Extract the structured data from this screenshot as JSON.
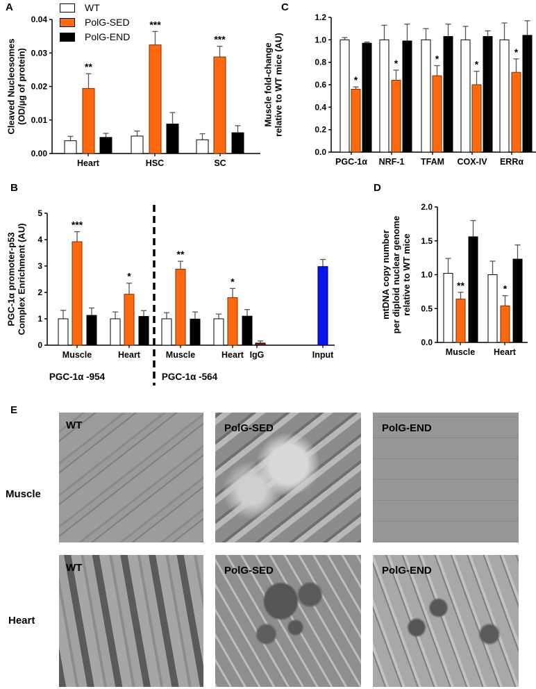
{
  "colors": {
    "wt": "#ffffff",
    "sed": "#ff6a10",
    "end": "#000000",
    "input": "#0a14e8",
    "igg": "#8b1a1a"
  },
  "legend": {
    "items": [
      {
        "label": "WT"
      },
      {
        "label": "PolG-SED"
      },
      {
        "label": "PolG-END"
      }
    ]
  },
  "panels": {
    "A": {
      "letter": "A"
    },
    "B": {
      "letter": "B"
    },
    "C": {
      "letter": "C"
    },
    "D": {
      "letter": "D"
    },
    "E": {
      "letter": "E",
      "rows": [
        {
          "label": "Muscle"
        },
        {
          "label": "Heart"
        }
      ],
      "images": [
        {
          "label": "WT"
        },
        {
          "label": "PolG-SED"
        },
        {
          "label": "PolG-END"
        },
        {
          "label": "WT"
        },
        {
          "label": "PolG-SED"
        },
        {
          "label": "PolG-END"
        }
      ]
    }
  },
  "chart_data": [
    {
      "panel": "A",
      "type": "bar",
      "title": "",
      "ylabel": "Cleaved Nucleosomes (OD/µg of protein)",
      "ylabel_lines": [
        "Cleaved Nucleosomes",
        "(OD/µg of protein)"
      ],
      "xlabel": "",
      "ylim": [
        0,
        0.04
      ],
      "yticks": [
        "0.00",
        "0.01",
        "0.02",
        "0.03",
        "0.04"
      ],
      "categories": [
        "Heart",
        "HSC",
        "SC"
      ],
      "series": [
        {
          "name": "WT",
          "values": [
            0.0038,
            0.0052,
            0.0041
          ],
          "errors": [
            0.0013,
            0.0015,
            0.0018
          ]
        },
        {
          "name": "PolG-SED",
          "values": [
            0.0194,
            0.0324,
            0.0288
          ],
          "errors": [
            0.0044,
            0.004,
            0.0032
          ]
        },
        {
          "name": "PolG-END",
          "values": [
            0.0048,
            0.0088,
            0.0062
          ],
          "errors": [
            0.0012,
            0.0034,
            0.0021
          ]
        }
      ],
      "annotations": [
        "**",
        "***",
        "***"
      ],
      "legend_position": "top"
    },
    {
      "panel": "B",
      "type": "bar",
      "title": "",
      "ylabel": "PGC-1α promoter-p53 Complex Enrichment (AU)",
      "ylabel_lines": [
        "PGC-1α promoter-p53",
        "Complex Enrichment (AU)"
      ],
      "ylim": [
        0,
        5
      ],
      "yticks": [
        "0",
        "1",
        "2",
        "3",
        "4",
        "5"
      ],
      "groups": [
        {
          "label": "PGC-1α -954",
          "categories": [
            "Muscle",
            "Heart"
          ]
        },
        {
          "label": "PGC-1α -564",
          "categories": [
            "Muscle",
            "Heart"
          ]
        }
      ],
      "categories": [
        "Muscle",
        "Heart",
        "Muscle",
        "Heart",
        "IgG",
        "Input"
      ],
      "series": [
        {
          "name": "WT",
          "values": [
            1.0,
            1.0,
            1.0,
            1.0,
            null,
            null
          ],
          "errors": [
            0.32,
            0.26,
            0.23,
            0.18,
            null,
            null
          ]
        },
        {
          "name": "PolG-SED",
          "values": [
            3.92,
            1.93,
            2.88,
            1.8,
            null,
            null
          ],
          "errors": [
            0.38,
            0.42,
            0.3,
            0.35,
            null,
            null
          ]
        },
        {
          "name": "PolG-END",
          "values": [
            1.13,
            1.09,
            0.99,
            1.1,
            null,
            null
          ],
          "errors": [
            0.28,
            0.22,
            0.27,
            0.25,
            null,
            null
          ]
        },
        {
          "name": "IgG",
          "values": [
            null,
            null,
            null,
            null,
            0.08,
            null
          ],
          "errors": [
            null,
            null,
            null,
            null,
            0.08,
            null
          ]
        },
        {
          "name": "Input",
          "values": [
            null,
            null,
            null,
            null,
            null,
            2.98
          ],
          "errors": [
            null,
            null,
            null,
            null,
            null,
            0.27
          ]
        }
      ],
      "annotations": [
        "***",
        "*",
        "**",
        "*"
      ],
      "divider": "dashed vertical line between PGC-1α -954 and PGC-1α -564"
    },
    {
      "panel": "C",
      "type": "bar",
      "title": "",
      "ylabel": "Muscle fold-change relative to WT mice (AU)",
      "ylabel_lines": [
        "Muscle fold-change",
        "relative to WT mice (AU)"
      ],
      "ylim": [
        0,
        1.2
      ],
      "yticks": [
        "0.0",
        "0.2",
        "0.4",
        "0.6",
        "0.8",
        "1.0",
        "1.2"
      ],
      "categories": [
        "PGC-1α",
        "NRF-1",
        "TFAM",
        "COX-IV",
        "ERRα"
      ],
      "series": [
        {
          "name": "WT",
          "values": [
            1.0,
            1.0,
            1.0,
            1.0,
            1.0
          ],
          "errors": [
            0.02,
            0.13,
            0.1,
            0.12,
            0.15
          ]
        },
        {
          "name": "PolG-SED",
          "values": [
            0.56,
            0.64,
            0.68,
            0.6,
            0.71
          ],
          "errors": [
            0.02,
            0.09,
            0.09,
            0.12,
            0.12
          ]
        },
        {
          "name": "PolG-END",
          "values": [
            0.97,
            0.99,
            1.03,
            1.03,
            1.04
          ],
          "errors": [
            0.01,
            0.15,
            0.11,
            0.05,
            0.13
          ]
        }
      ],
      "annotations": [
        "*",
        "*",
        "*",
        "*",
        "*"
      ]
    },
    {
      "panel": "D",
      "type": "bar",
      "title": "",
      "ylabel": "mtDNA copy number per diploid nuclear genome relative to WT mice",
      "ylabel_lines": [
        "mtDNA copy number",
        "per diploid nuclear genome",
        "relative to WT mice"
      ],
      "ylim": [
        0,
        2.0
      ],
      "yticks": [
        "0.0",
        "0.5",
        "1.0",
        "1.5",
        "2.0"
      ],
      "categories": [
        "Muscle",
        "Heart"
      ],
      "series": [
        {
          "name": "WT",
          "values": [
            1.02,
            1.0
          ],
          "errors": [
            0.22,
            0.2
          ]
        },
        {
          "name": "PolG-SED",
          "values": [
            0.64,
            0.54
          ],
          "errors": [
            0.1,
            0.15
          ]
        },
        {
          "name": "PolG-END",
          "values": [
            1.56,
            1.23
          ],
          "errors": [
            0.24,
            0.21
          ]
        }
      ],
      "annotations": [
        "**",
        "*"
      ]
    }
  ]
}
